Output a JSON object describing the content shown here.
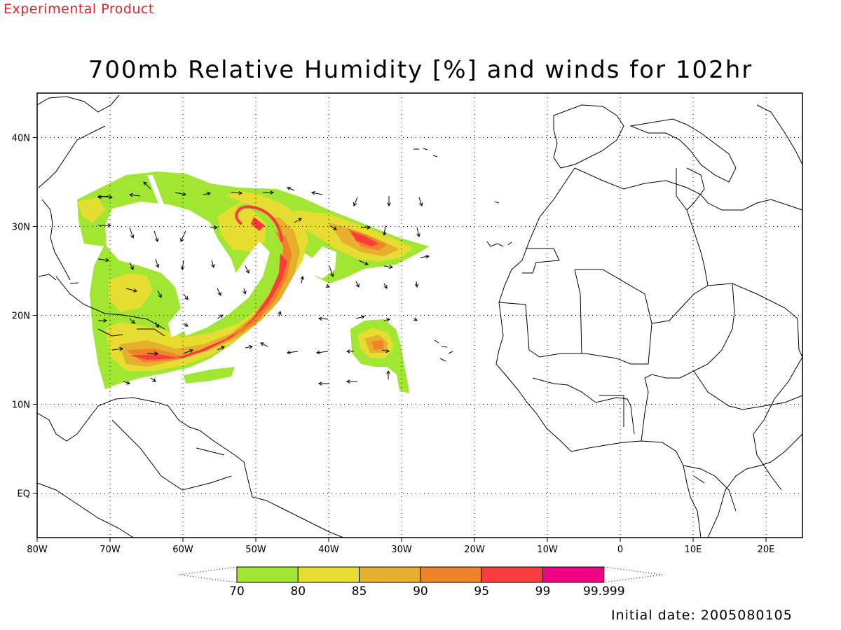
{
  "header": {
    "experimental_label": "Experimental Product",
    "title": "700mb Relative Humidity [%] and winds for 102hr"
  },
  "footer": {
    "initial_date": "Initial date: 2005080105"
  },
  "map": {
    "extent": {
      "lon_min": -80,
      "lon_max": 25,
      "lat_min": -5,
      "lat_max": 45
    },
    "x_ticks": [
      {
        "lon": -80,
        "label": "80W"
      },
      {
        "lon": -70,
        "label": "70W"
      },
      {
        "lon": -60,
        "label": "60W"
      },
      {
        "lon": -50,
        "label": "50W"
      },
      {
        "lon": -40,
        "label": "40W"
      },
      {
        "lon": -30,
        "label": "30W"
      },
      {
        "lon": -20,
        "label": "20W"
      },
      {
        "lon": -10,
        "label": "10W"
      },
      {
        "lon": 0,
        "label": "0"
      },
      {
        "lon": 10,
        "label": "10E"
      },
      {
        "lon": 20,
        "label": "20E"
      }
    ],
    "y_ticks": [
      {
        "lat": 0,
        "label": "EQ"
      },
      {
        "lat": 10,
        "label": "10N"
      },
      {
        "lat": 20,
        "label": "20N"
      },
      {
        "lat": 30,
        "label": "30N"
      },
      {
        "lat": 40,
        "label": "40N"
      }
    ],
    "grid": true
  },
  "colorbar": {
    "labels": [
      "70",
      "80",
      "85",
      "90",
      "95",
      "99",
      "99.999"
    ],
    "colors": [
      "#a0e632",
      "#e6dc32",
      "#e6af2d",
      "#f08228",
      "#fa3c3c",
      "#f00082"
    ]
  }
}
